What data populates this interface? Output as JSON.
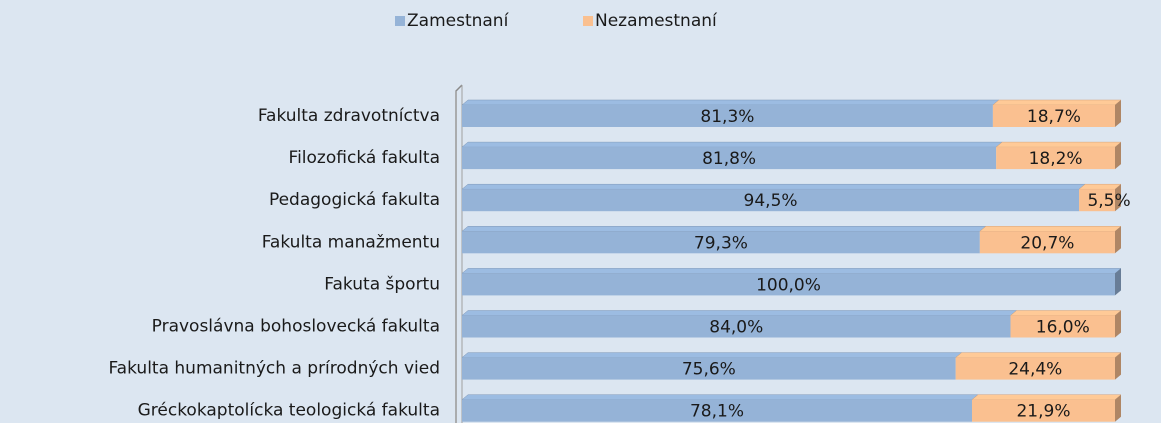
{
  "chart_data": {
    "type": "stacked-bar-horizontal",
    "categories": [
      "Fakulta zdravotníctva",
      "Filozofická fakulta",
      "Pedagogická fakulta",
      "Fakulta manažmentu",
      "Fakuta športu",
      "Pravoslávna bohoslovecká fakulta",
      "Fakulta humanitných a prírodných vied",
      "Gréckokaptolícka teologická fakulta"
    ],
    "series": [
      {
        "name": "Zamestnaní",
        "color": "#95b3d7",
        "values": [
          81.3,
          81.8,
          94.5,
          79.3,
          100.0,
          84.0,
          75.6,
          78.1
        ],
        "value_labels": [
          "81,3%",
          "81,8%",
          "94,5%",
          "79,3%",
          "100,0%",
          "84,0%",
          "75,6%",
          "78,1%"
        ]
      },
      {
        "name": "Nezamestnaní",
        "color": "#fac090",
        "values": [
          18.7,
          18.2,
          5.5,
          20.7,
          0,
          16.0,
          24.4,
          21.9
        ],
        "value_labels": [
          "18,7%",
          "18,2%",
          "5,5%",
          "20,7%",
          null,
          "16,0%",
          "24,4%",
          "21,9%"
        ]
      }
    ],
    "xlim": [
      0,
      100
    ],
    "legend": "top"
  }
}
